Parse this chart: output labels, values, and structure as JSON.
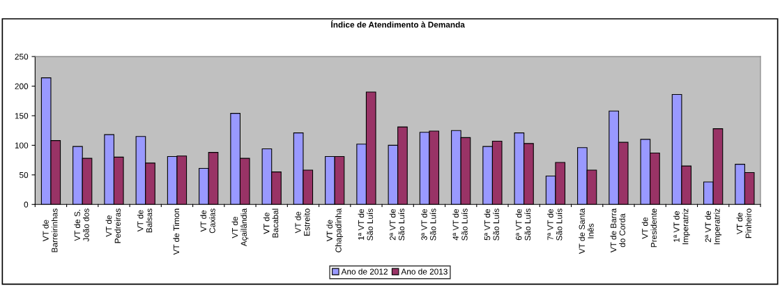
{
  "chart_data": {
    "type": "bar",
    "title": "Índice de Atendimento à Demanda",
    "categories": [
      "VT de\nBarreirinhas",
      "VT de S.\nJoão dos",
      "VT de\nPedreiras",
      "VT de\nBalsas",
      "VT de Timon",
      "VT de\nCaxias",
      "VT de\nAçailândia",
      "VT de\nBacabal",
      "VT de\nEstreito",
      "VT de\nChapadinha",
      "1ª VT de\nSão Luís",
      "2ª VT de\nSão Luís",
      "3ª VT de\nSão Luís",
      "4ª VT de\nSão Luís",
      "5ª VT de\nSão Luís",
      "6ª VT de\nSão Luís",
      "7ª VT de\nSão Luís",
      "VT de Santa\nInês",
      "VT de Barra\ndo Corda",
      "VT de\nPresidente",
      "1ª VT de\nImperatriz",
      "2ª VT de\nImperatriz",
      "VT de\nPinheiro"
    ],
    "series": [
      {
        "name": "Ano de 2012",
        "color": "#9999ff",
        "values": [
          214,
          98,
          118,
          115,
          81,
          61,
          154,
          94,
          121,
          81,
          102,
          100,
          122,
          125,
          98,
          121,
          48,
          96,
          158,
          110,
          186,
          38,
          68
        ]
      },
      {
        "name": "Ano de 2013",
        "color": "#993366",
        "values": [
          108,
          78,
          80,
          70,
          82,
          88,
          78,
          55,
          58,
          81,
          190,
          131,
          124,
          113,
          107,
          103,
          71,
          58,
          105,
          87,
          65,
          128,
          54
        ]
      }
    ],
    "ylim": [
      0,
      250
    ],
    "yticks": [
      0,
      50,
      100,
      150,
      200,
      250
    ],
    "grid": false,
    "legend": "bottom"
  }
}
